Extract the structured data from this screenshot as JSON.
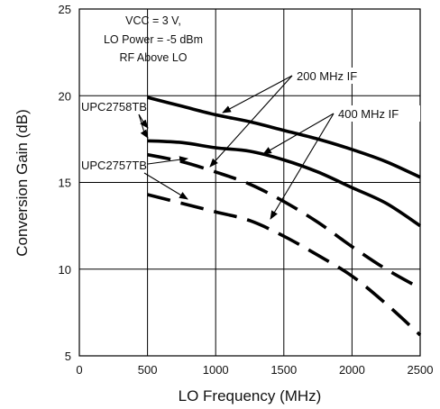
{
  "chart_data": {
    "type": "line",
    "xlabel": "LO Frequency (MHz)",
    "ylabel": "Conversion Gain (dB)",
    "xlim": [
      0,
      2500
    ],
    "ylim": [
      5,
      25
    ],
    "x_ticks": [
      "0",
      "500",
      "1000",
      "1500",
      "2000",
      "2500"
    ],
    "y_ticks": [
      "5",
      "10",
      "15",
      "20",
      "25"
    ],
    "grid": true,
    "conditions": [
      "VCC = 3 V,",
      "LO Power = -5 dBm",
      "RF Above LO"
    ],
    "annotations": {
      "if200": "200 MHz IF",
      "if400": "400 MHz IF",
      "device_a": "UPC2758TB",
      "device_b": "UPC2757TB"
    },
    "series": [
      {
        "device": "UPC2758TB",
        "if": "200 MHz IF",
        "style": "solid",
        "x": [
          500,
          750,
          1000,
          1250,
          1500,
          1750,
          2000,
          2250,
          2500
        ],
        "y": [
          19.9,
          19.4,
          18.9,
          18.5,
          18.0,
          17.5,
          16.9,
          16.2,
          15.3
        ]
      },
      {
        "device": "UPC2758TB",
        "if": "400 MHz IF",
        "style": "solid",
        "x": [
          500,
          750,
          1000,
          1250,
          1500,
          1750,
          2000,
          2250,
          2500
        ],
        "y": [
          17.4,
          17.3,
          17.0,
          16.8,
          16.3,
          15.6,
          14.7,
          13.8,
          12.5
        ]
      },
      {
        "device": "UPC2757TB",
        "if": "200 MHz IF",
        "style": "dashed",
        "x": [
          500,
          750,
          1000,
          1250,
          1500,
          1750,
          2000,
          2250,
          2500
        ],
        "y": [
          16.6,
          16.2,
          15.6,
          14.9,
          13.9,
          12.7,
          11.3,
          10.0,
          8.9
        ]
      },
      {
        "device": "UPC2757TB",
        "if": "400 MHz IF",
        "style": "dashed",
        "x": [
          500,
          750,
          1000,
          1250,
          1500,
          1750,
          2000,
          2250,
          2500
        ],
        "y": [
          14.3,
          13.8,
          13.3,
          12.8,
          11.9,
          10.8,
          9.6,
          8.0,
          6.2
        ]
      }
    ]
  }
}
